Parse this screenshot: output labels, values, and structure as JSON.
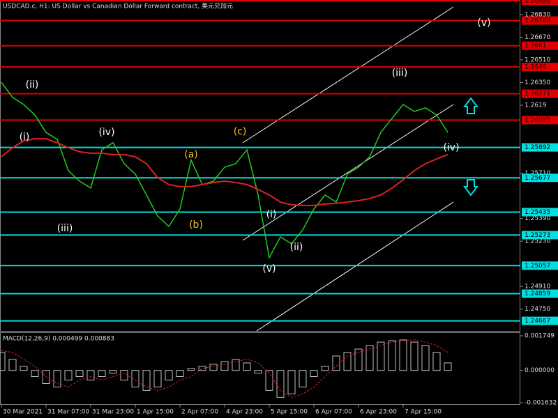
{
  "chart_data": {
    "type": "line",
    "title": "USDCAD.c, H1:  US Dollar vs Canadian Dollar Forward contract, 美元兑加元",
    "categories": [
      "30 Mar 2021",
      null,
      null,
      null,
      "31 Mar 07:00",
      null,
      null,
      null,
      "31 Mar 23:00",
      null,
      null,
      null,
      "1 Apr 15:00",
      null,
      null,
      null,
      "2 Apr 07:00",
      null,
      null,
      null,
      "4 Apr 23:00",
      null,
      null,
      null,
      "5 Apr 15:00",
      null,
      null,
      null,
      "6 Apr 07:00",
      null,
      null,
      null,
      "6 Apr 23:00",
      null,
      null,
      null,
      "7 Apr 15:00",
      null,
      null,
      null,
      null
    ],
    "values": [
      1.26352,
      1.26245,
      1.26195,
      1.26121,
      1.25998,
      1.25949,
      1.25728,
      1.25654,
      1.25605,
      1.25875,
      1.25925,
      1.25777,
      1.25703,
      1.25556,
      1.25408,
      1.25334,
      1.25457,
      1.25802,
      1.2563,
      1.25654,
      1.25752,
      1.25777,
      1.25875,
      1.25556,
      1.25113,
      1.2526,
      1.25211,
      1.2531,
      1.25457,
      1.25556,
      1.25506,
      1.25703,
      1.25752,
      1.25826,
      1.25998,
      1.26097,
      1.26195,
      1.26146,
      1.26171,
      1.26121,
      1.25998
    ],
    "color": "#22cc22",
    "ma_values": [
      1.25826,
      1.2589,
      1.25938,
      1.25953,
      1.25953,
      1.25925,
      1.2589,
      1.25861,
      1.25851,
      1.25851,
      1.25841,
      1.25841,
      1.25826,
      1.25777,
      1.25679,
      1.2563,
      1.25615,
      1.25615,
      1.2563,
      1.25644,
      1.25654,
      1.25644,
      1.2563,
      1.25595,
      1.25556,
      1.25506,
      1.25487,
      1.25482,
      1.25482,
      1.25492,
      1.25497,
      1.25506,
      1.25516,
      1.25531,
      1.25556,
      1.25605,
      1.25664,
      1.25728,
      1.25777,
      1.25811,
      1.25841
    ],
    "ma_color": "#e02020",
    "ylim": [
      1.24596,
      1.26933
    ],
    "yticks": [
      {
        "value": 1.2683,
        "label": "1.26830"
      },
      {
        "value": 1.2667,
        "label": "1.26670"
      },
      {
        "value": 1.2651,
        "label": "1.26510"
      },
      {
        "value": 1.2635,
        "label": "1.26350"
      },
      {
        "value": 1.2619,
        "label": "1.2619"
      },
      {
        "value": 1.2571,
        "label": "1.25710"
      },
      {
        "value": 1.2539,
        "label": "1.25390"
      },
      {
        "value": 1.2523,
        "label": "1.25230"
      },
      {
        "value": 1.2491,
        "label": "1.24910"
      },
      {
        "value": 1.2475,
        "label": "1.24750"
      }
    ],
    "levels": [
      {
        "value": 1.26928,
        "color": "#e00000"
      },
      {
        "value": 1.26788,
        "color": "#e00000"
      },
      {
        "value": 1.2661,
        "color": "#e00000"
      },
      {
        "value": 1.2646,
        "color": "#e00000"
      },
      {
        "value": 1.26271,
        "color": "#e00000"
      },
      {
        "value": 1.26085,
        "color": "#e00000"
      },
      {
        "value": 1.25892,
        "color": "#00e0e0"
      },
      {
        "value": 1.25677,
        "color": "#00e0e0"
      },
      {
        "value": 1.25435,
        "color": "#00e0e0"
      },
      {
        "value": 1.25273,
        "color": "#00e0e0"
      },
      {
        "value": 1.25057,
        "color": "#00e0e0"
      },
      {
        "value": 1.24859,
        "color": "#00e0e0"
      },
      {
        "value": 1.24667,
        "color": "#00e0e0"
      }
    ],
    "annotations": [
      {
        "text": "(ii)",
        "color": "#ffffff"
      },
      {
        "text": "(i)",
        "color": "#ffffff"
      },
      {
        "text": "(iv)",
        "color": "#ffffff"
      },
      {
        "text": "(iii)",
        "color": "#ffffff"
      },
      {
        "text": "(a)",
        "color": "#f0c020"
      },
      {
        "text": "(b)",
        "color": "#f0c020"
      },
      {
        "text": "(c)",
        "color": "#f0c020"
      },
      {
        "text": "(i)",
        "color": "#ffffff"
      },
      {
        "text": "(v)",
        "color": "#ffffff"
      },
      {
        "text": "(ii)",
        "color": "#ffffff"
      },
      {
        "text": "(iii)",
        "color": "#ffffff"
      },
      {
        "text": "(iv)",
        "color": "#ffffff"
      },
      {
        "text": "(v)",
        "color": "#ffffff"
      }
    ],
    "macd": {
      "label": "MACD(12,26,9) 0.000499 0.000883",
      "values": [
        0.00091,
        0.00056,
        0.00021,
        -0.00031,
        -0.00066,
        -0.00084,
        -0.00049,
        -0.00031,
        -0.00049,
        -0.00031,
        -0.00014,
        -0.00049,
        -0.00084,
        -0.00101,
        -0.00084,
        -0.00049,
        -0.00031,
        0.0001,
        0.00021,
        0.00031,
        0.00045,
        0.00056,
        0.00038,
        -0.00014,
        -0.00101,
        -0.00136,
        -0.00119,
        -0.00084,
        -0.00031,
        0.00021,
        0.00073,
        0.00091,
        0.00108,
        0.00126,
        0.00143,
        0.0015,
        0.00154,
        0.00143,
        0.00126,
        0.00091,
        0.00038
      ],
      "signal": [
        0.001,
        0.00091,
        0.00056,
        0.00021,
        -0.00031,
        -0.00066,
        -0.00084,
        -0.00049,
        -0.00031,
        -0.00049,
        -0.00031,
        -0.00014,
        -0.00049,
        -0.00084,
        -0.00101,
        -0.00084,
        -0.00049,
        -0.00031,
        0.0001,
        0.00021,
        0.00031,
        0.00045,
        0.00056,
        0.00038,
        -0.00014,
        -0.00101,
        -0.00136,
        -0.00119,
        -0.00084,
        -0.00031,
        0.00021,
        0.00073,
        0.00091,
        0.00108,
        0.00126,
        0.00143,
        0.0015,
        0.00154,
        0.00143,
        0.00126,
        0.00091
      ],
      "color": "#c0c0c0",
      "signal_color": "#e02020",
      "ylim": [
        -0.0017,
        0.00189
      ],
      "yticks": [
        0.001749,
        {
          "value": 0,
          "label": "0.000000"
        },
        -0.001632
      ]
    }
  }
}
